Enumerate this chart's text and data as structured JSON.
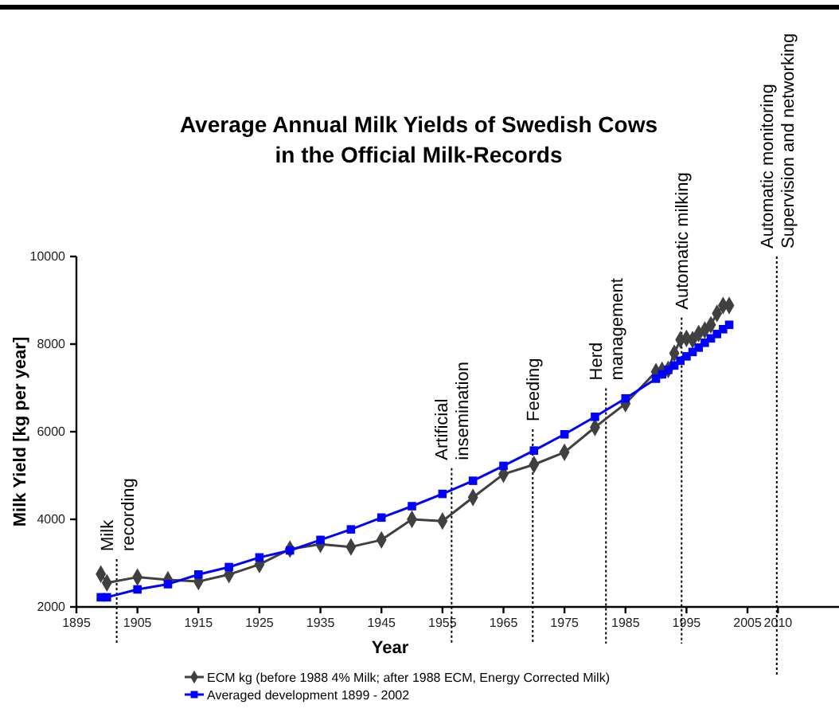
{
  "chart_data": {
    "type": "line",
    "title": "Average Annual Milk Yields of Swedish Cows\nin the Official Milk-Records",
    "xlabel": "Year",
    "ylabel": "Milk Yield [kg per year]",
    "xlim": [
      1895,
      2020
    ],
    "xticks": [
      1895,
      1905,
      1915,
      1925,
      1935,
      1945,
      1955,
      1965,
      1975,
      1985,
      1995,
      2005,
      2010
    ],
    "ylim": [
      2000,
      10000
    ],
    "yticks": [
      2000,
      4000,
      6000,
      8000,
      10000
    ],
    "grid": false,
    "legend": "bottom",
    "series": [
      {
        "name": "ECM kg (before 1988 4% Milk; after 1988 ECM, Energy Corrected Milk)",
        "color": "#404040",
        "marker": "diamond",
        "x": [
          1899,
          1900,
          1905,
          1910,
          1915,
          1920,
          1925,
          1930,
          1935,
          1940,
          1945,
          1950,
          1955,
          1960,
          1965,
          1970,
          1975,
          1980,
          1985,
          1990,
          1991,
          1992,
          1993,
          1994,
          1995,
          1996,
          1997,
          1998,
          1999,
          2000,
          2001,
          2002
        ],
        "values": [
          2750,
          2550,
          2680,
          2620,
          2580,
          2740,
          2970,
          3320,
          3430,
          3370,
          3530,
          4000,
          3960,
          4500,
          5030,
          5250,
          5530,
          6100,
          6640,
          7370,
          7400,
          7420,
          7790,
          8100,
          8130,
          8100,
          8240,
          8320,
          8440,
          8700,
          8880,
          8880
        ]
      },
      {
        "name": "Averaged development 1899 - 2002",
        "color": "#0000ff",
        "marker": "square",
        "x": [
          1899,
          1900,
          1905,
          1910,
          1915,
          1920,
          1925,
          1930,
          1935,
          1940,
          1945,
          1950,
          1955,
          1960,
          1965,
          1970,
          1975,
          1980,
          1985,
          1990,
          1991,
          1992,
          1993,
          1994,
          1995,
          1996,
          1997,
          1998,
          1999,
          2000,
          2001,
          2002
        ],
        "values": [
          2220,
          2220,
          2400,
          2520,
          2740,
          2910,
          3130,
          3290,
          3530,
          3770,
          4040,
          4300,
          4580,
          4880,
          5220,
          5570,
          5940,
          6340,
          6760,
          7210,
          7310,
          7410,
          7510,
          7620,
          7720,
          7820,
          7920,
          8030,
          8130,
          8230,
          8340,
          8440
        ]
      }
    ],
    "ref_lines": [
      {
        "axis": "x",
        "value": 1901.6,
        "label": "Milk\nrecording",
        "line_style": "dotted"
      },
      {
        "axis": "x",
        "value": 1956.5,
        "label": "Artificial\ninsemination",
        "line_style": "dotted"
      },
      {
        "axis": "x",
        "value": 1969.8,
        "label": "Feeding",
        "line_style": "dotted"
      },
      {
        "axis": "x",
        "value": 1981.8,
        "label": "Herd\nmanagement",
        "line_style": "dotted"
      },
      {
        "axis": "x",
        "value": 1994.2,
        "label": "Automatic milking",
        "line_style": "dotted"
      },
      {
        "axis": "x",
        "value": 2009.8,
        "label": "Automatic monitoring\nSupervision and networking",
        "line_style": "dotted"
      }
    ]
  }
}
